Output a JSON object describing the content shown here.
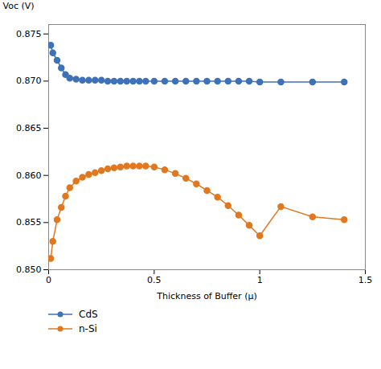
{
  "chart_data": {
    "type": "line",
    "x_label": "Thickness of Buffer (μ)",
    "y_label": "Voc (V)",
    "xlim": [
      0,
      1.5
    ],
    "ylim": [
      0.85,
      0.876
    ],
    "xticks": [
      0,
      0.5,
      1,
      1.5
    ],
    "yticks": [
      {
        "value": 0.85,
        "label": "0.850"
      },
      0.855,
      {
        "value": 0.86,
        "label": "0.860"
      },
      0.865,
      {
        "value": 0.87,
        "label": "0.870"
      },
      0.875
    ],
    "grid": false,
    "legend": "bottom",
    "series": [
      {
        "name": "CdS",
        "color": "#3e72b8",
        "marker": "circle",
        "x": [
          0.01,
          0.02,
          0.04,
          0.06,
          0.08,
          0.1,
          0.13,
          0.16,
          0.19,
          0.22,
          0.25,
          0.28,
          0.31,
          0.34,
          0.37,
          0.4,
          0.43,
          0.46,
          0.5,
          0.55,
          0.6,
          0.65,
          0.7,
          0.75,
          0.8,
          0.85,
          0.9,
          0.95,
          1.0,
          1.1,
          1.25,
          1.4
        ],
        "values": [
          0.8738,
          0.873,
          0.8722,
          0.8714,
          0.8707,
          0.8703,
          0.8702,
          0.8701,
          0.8701,
          0.8701,
          0.8701,
          0.87,
          0.87,
          0.87,
          0.87,
          0.87,
          0.87,
          0.87,
          0.87,
          0.87,
          0.87,
          0.87,
          0.87,
          0.87,
          0.87,
          0.87,
          0.87,
          0.87,
          0.8699,
          0.8699,
          0.8699,
          0.8699
        ]
      },
      {
        "name": "n-Si",
        "color": "#e07820",
        "marker": "circle",
        "x": [
          0.01,
          0.02,
          0.04,
          0.06,
          0.08,
          0.1,
          0.13,
          0.16,
          0.19,
          0.22,
          0.25,
          0.28,
          0.31,
          0.34,
          0.37,
          0.4,
          0.43,
          0.46,
          0.5,
          0.55,
          0.6,
          0.65,
          0.7,
          0.75,
          0.8,
          0.85,
          0.9,
          0.95,
          1.0,
          1.1,
          1.25,
          1.4
        ],
        "values": [
          0.8512,
          0.853,
          0.8553,
          0.8566,
          0.8578,
          0.8587,
          0.8594,
          0.8598,
          0.8601,
          0.8603,
          0.8605,
          0.8607,
          0.8608,
          0.8609,
          0.861,
          0.861,
          0.861,
          0.861,
          0.8609,
          0.8606,
          0.8602,
          0.8597,
          0.8591,
          0.8584,
          0.8577,
          0.8568,
          0.8558,
          0.8547,
          0.8536,
          0.8567,
          0.8556,
          0.8553
        ]
      }
    ]
  }
}
